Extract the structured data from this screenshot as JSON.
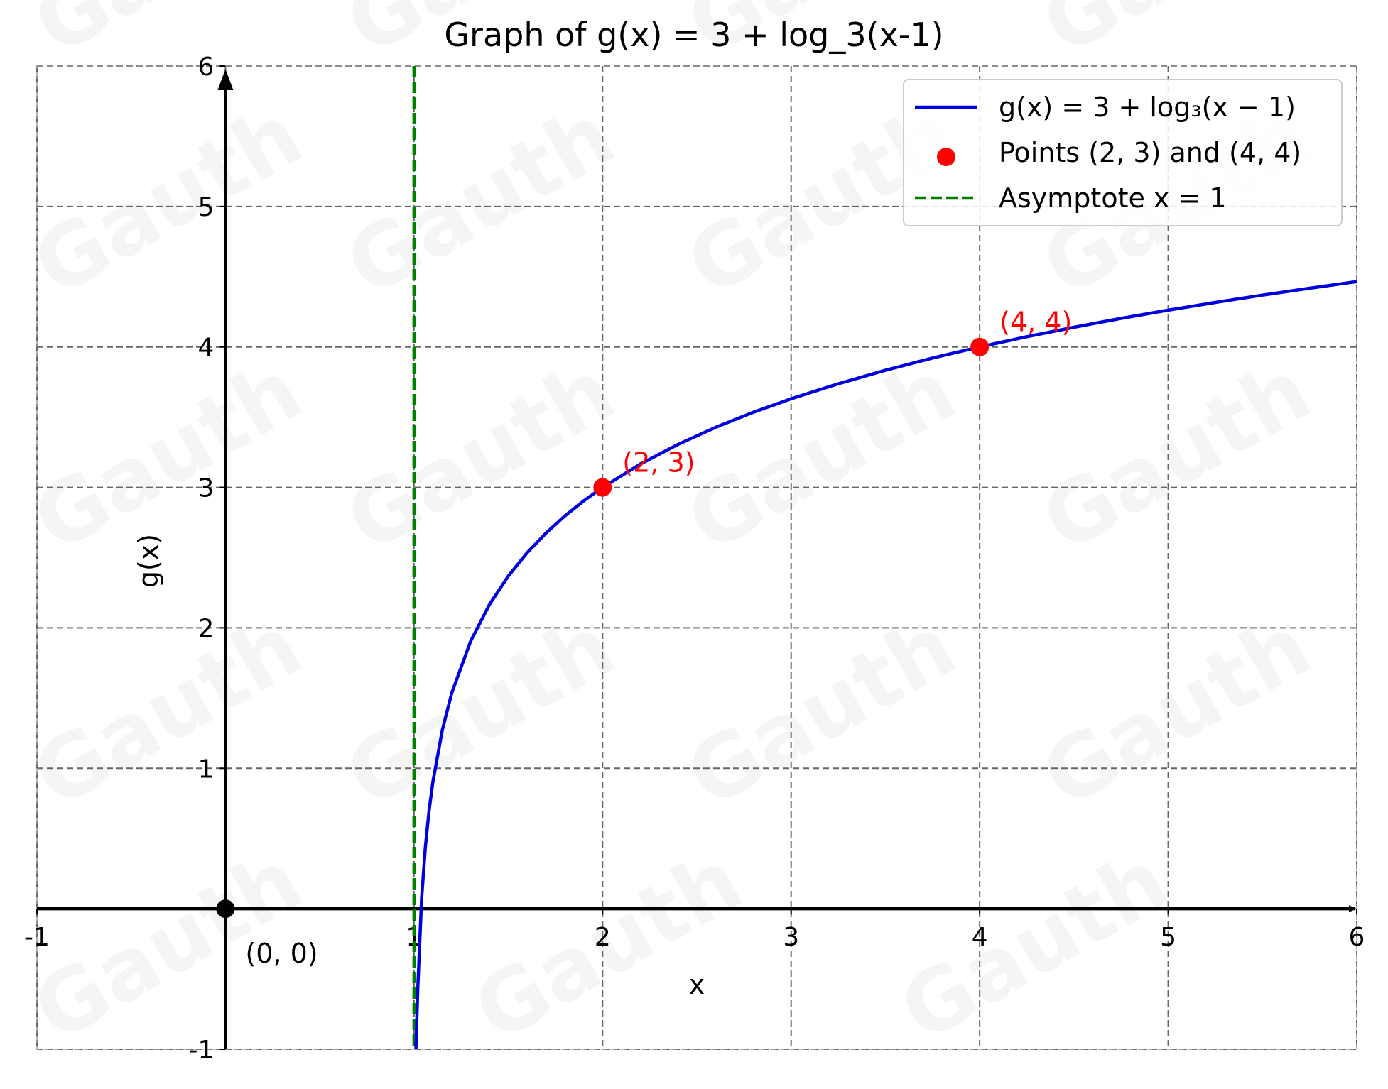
{
  "chart_data": {
    "type": "line",
    "title": "Graph of g(x) = 3 + log_3(x-1)",
    "xlabel": "x",
    "ylabel": "g(x)",
    "xlim": [
      -1,
      6
    ],
    "ylim": [
      -1,
      6
    ],
    "xticks": [
      -1,
      1,
      2,
      3,
      4,
      5,
      6
    ],
    "yticks": [
      -1,
      1,
      2,
      3,
      4,
      5,
      6
    ],
    "grid": true,
    "legend_position": "top-right",
    "series": [
      {
        "name": "g(x) = 3 + log₃(x − 1)",
        "kind": "line",
        "color": "#0000dd",
        "x": [
          1.01,
          1.02,
          1.04,
          1.06,
          1.08,
          1.1,
          1.15,
          1.2,
          1.3,
          1.4,
          1.5,
          1.6,
          1.7,
          1.8,
          1.9,
          2.0,
          2.2,
          2.4,
          2.6,
          2.8,
          3.0,
          3.25,
          3.5,
          3.75,
          4.0,
          4.25,
          4.5,
          4.75,
          5.0,
          5.25,
          5.5,
          5.75,
          6.0
        ],
        "y": [
          -1.192,
          -0.561,
          0.07,
          0.439,
          0.701,
          0.904,
          1.273,
          1.535,
          1.904,
          2.166,
          2.369,
          2.535,
          2.675,
          2.797,
          2.904,
          3.0,
          3.166,
          3.306,
          3.428,
          3.535,
          3.631,
          3.738,
          3.834,
          3.921,
          4.0,
          4.073,
          4.14,
          4.203,
          4.262,
          4.317,
          4.369,
          4.418,
          4.465
        ]
      },
      {
        "name": "Points (2, 3) and (4, 4)",
        "kind": "scatter",
        "color": "#ff0000",
        "points": [
          [
            2,
            3
          ],
          [
            4,
            4
          ]
        ]
      },
      {
        "name": "Asymptote x = 1",
        "kind": "vline",
        "color": "#008000",
        "x": 1
      }
    ],
    "annotations": [
      {
        "text": "(2, 3)",
        "x": 2,
        "y": 3,
        "color": "#ff0000"
      },
      {
        "text": "(4, 4)",
        "x": 4,
        "y": 4,
        "color": "#ff0000"
      },
      {
        "text": "(0, 0)",
        "x": 0,
        "y": 0,
        "color": "#000000"
      }
    ],
    "origin_point": [
      0,
      0
    ]
  },
  "watermark": {
    "text": "Gauth"
  }
}
